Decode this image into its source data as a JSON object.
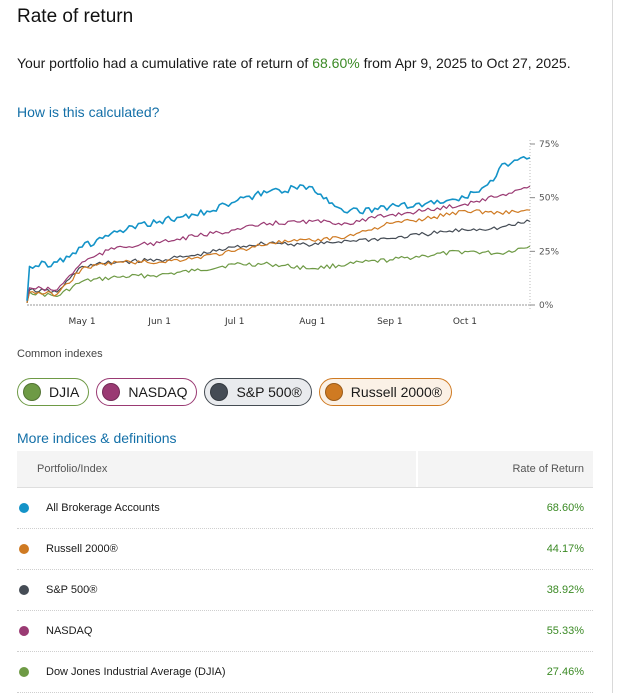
{
  "page": {
    "title": "Rate of return"
  },
  "summary": {
    "prefix": "Your portfolio had a cumulative rate of return of ",
    "rate": "68.60%",
    "suffix": " from Apr 9, 2025 to Oct 27, 2025."
  },
  "links": {
    "how_calculated": "How is this calculated?",
    "more_indices": "More indices & definitions"
  },
  "chart_data": {
    "type": "line",
    "x_range": [
      "2025-04-09",
      "2025-10-27"
    ],
    "x_ticks": [
      {
        "label": "May 1",
        "date": "2025-05-01"
      },
      {
        "label": "Jun 1",
        "date": "2025-06-01"
      },
      {
        "label": "Jul 1",
        "date": "2025-07-01"
      },
      {
        "label": "Aug 1",
        "date": "2025-08-01"
      },
      {
        "label": "Sep 1",
        "date": "2025-09-01"
      },
      {
        "label": "Oct 1",
        "date": "2025-10-01"
      }
    ],
    "y_ticks": [
      {
        "label": "0%",
        "value": 0
      },
      {
        "label": "25%",
        "value": 25
      },
      {
        "label": "50%",
        "value": 50
      },
      {
        "label": "75%",
        "value": 75
      }
    ],
    "ylim": [
      0,
      75
    ],
    "y_axis_position": "right",
    "series": [
      {
        "key": "portfolio",
        "color": "#1493c8",
        "x": [
          "2025-04-09",
          "2025-04-10",
          "2025-04-21",
          "2025-05-01",
          "2025-05-15",
          "2025-06-01",
          "2025-06-15",
          "2025-07-01",
          "2025-07-15",
          "2025-08-01",
          "2025-08-10",
          "2025-08-20",
          "2025-09-01",
          "2025-09-15",
          "2025-10-01",
          "2025-10-10",
          "2025-10-17",
          "2025-10-27"
        ],
        "y": [
          2,
          18,
          20,
          27,
          34,
          39,
          42,
          48,
          53,
          55,
          46,
          43,
          46,
          47,
          50,
          56,
          66,
          68.6
        ]
      },
      {
        "key": "nasdaq",
        "color": "#9a3a73",
        "x": [
          "2025-04-09",
          "2025-04-10",
          "2025-04-21",
          "2025-05-01",
          "2025-05-15",
          "2025-06-01",
          "2025-06-15",
          "2025-07-01",
          "2025-07-15",
          "2025-08-01",
          "2025-08-15",
          "2025-09-01",
          "2025-09-15",
          "2025-10-01",
          "2025-10-15",
          "2025-10-27"
        ],
        "y": [
          2,
          8,
          7,
          20,
          27,
          29,
          32,
          35,
          38,
          39,
          38,
          42,
          44,
          47,
          51,
          55.33
        ]
      },
      {
        "key": "russell",
        "color": "#cf7a22",
        "x": [
          "2025-04-09",
          "2025-04-10",
          "2025-04-21",
          "2025-05-01",
          "2025-05-15",
          "2025-06-01",
          "2025-06-15",
          "2025-07-01",
          "2025-07-15",
          "2025-08-01",
          "2025-08-15",
          "2025-09-01",
          "2025-09-15",
          "2025-10-01",
          "2025-10-15",
          "2025-10-27"
        ],
        "y": [
          1,
          6,
          5,
          17,
          20,
          20,
          22,
          25,
          29,
          30,
          32,
          38,
          40,
          44,
          43,
          44.17
        ]
      },
      {
        "key": "sp500",
        "color": "#454c55",
        "x": [
          "2025-04-09",
          "2025-04-10",
          "2025-04-21",
          "2025-05-01",
          "2025-05-15",
          "2025-06-01",
          "2025-06-15",
          "2025-07-01",
          "2025-07-15",
          "2025-08-01",
          "2025-08-15",
          "2025-09-01",
          "2025-09-15",
          "2025-10-01",
          "2025-10-15",
          "2025-10-27"
        ],
        "y": [
          1,
          7,
          6,
          18,
          20,
          21,
          23,
          27,
          29,
          28,
          30,
          31,
          33,
          35,
          36,
          38.92
        ]
      },
      {
        "key": "djia",
        "color": "#6e9a45",
        "x": [
          "2025-04-09",
          "2025-04-10",
          "2025-04-21",
          "2025-05-01",
          "2025-05-15",
          "2025-06-01",
          "2025-06-15",
          "2025-07-01",
          "2025-07-15",
          "2025-08-01",
          "2025-08-15",
          "2025-09-01",
          "2025-09-15",
          "2025-10-01",
          "2025-10-15",
          "2025-10-27"
        ],
        "y": [
          1,
          6,
          4,
          11,
          13,
          14,
          16,
          19,
          19,
          17,
          19,
          21,
          23,
          25,
          24,
          27.46
        ]
      }
    ]
  },
  "indexes": {
    "label": "Common indexes",
    "pills": [
      {
        "label": "DJIA",
        "color": "#6e9a45"
      },
      {
        "label": "NASDAQ",
        "color": "#9a3a73"
      },
      {
        "label": "S&P 500®",
        "color": "#454c55"
      },
      {
        "label": "Russell 2000®",
        "color": "#cf7a22"
      }
    ]
  },
  "table": {
    "header": {
      "name": "Portfolio/Index",
      "value": "Rate of Return"
    },
    "rows": [
      {
        "name": "All Brokerage Accounts",
        "value": "68.60%",
        "color": "#1493c8"
      },
      {
        "name": "Russell 2000®",
        "value": "44.17%",
        "color": "#cf7a22"
      },
      {
        "name": "S&P 500®",
        "value": "38.92%",
        "color": "#454c55"
      },
      {
        "name": "NASDAQ",
        "value": "55.33%",
        "color": "#9a3a73"
      },
      {
        "name": "Dow Jones Industrial Average (DJIA)",
        "value": "27.46%",
        "color": "#6e9a45"
      }
    ]
  }
}
